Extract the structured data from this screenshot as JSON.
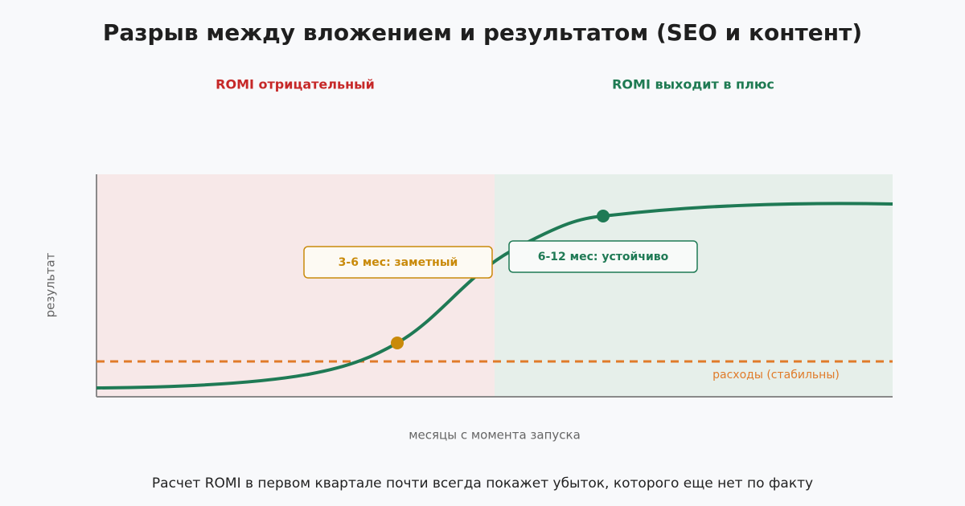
{
  "header": {
    "title": "Разрыв между вложением и результатом (SEO и контент)"
  },
  "zones": {
    "negative": "ROMI отрицательный",
    "positive": "ROMI выходит в плюс"
  },
  "axes": {
    "y_label": "результат",
    "x_label": "месяцы с момента запуска"
  },
  "annotations": {
    "costs": "расходы (стабильны)",
    "early": "3-6 мес: заметный",
    "late": "6-12 мес: устойчиво"
  },
  "footer": {
    "note": "Расчет ROMI в первом квартале почти всегда покажет убыток, которого еще нет по факту"
  }
}
